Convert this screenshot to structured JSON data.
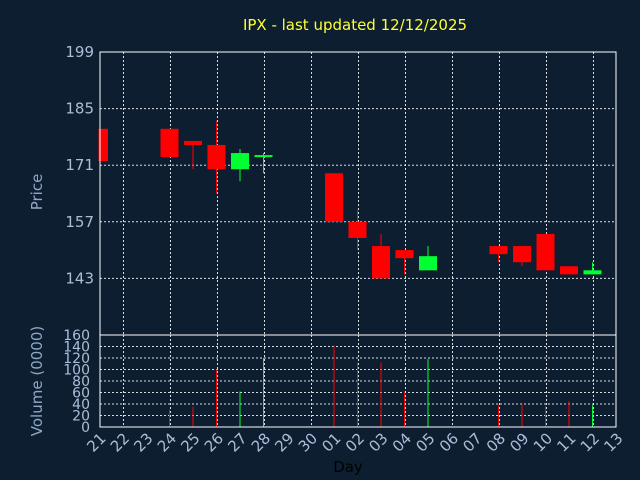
{
  "chart_data": {
    "type": "candlestick",
    "title": "IPX - last updated 12/12/2025",
    "xlabel": "Day",
    "price_panel": {
      "ylabel": "Price",
      "ylim": [
        129,
        199
      ],
      "yticks": [
        199,
        185,
        171,
        157,
        143
      ]
    },
    "volume_panel": {
      "ylabel": "Volume (0000)",
      "ylim": [
        0,
        160
      ],
      "yticks": [
        160,
        140,
        120,
        100,
        80,
        60,
        40,
        20,
        0
      ]
    },
    "x_labels": [
      "21",
      "22",
      "23",
      "24",
      "25",
      "26",
      "27",
      "28",
      "29",
      "30",
      "01",
      "02",
      "03",
      "04",
      "05",
      "06",
      "07",
      "08",
      "09",
      "10",
      "11",
      "12",
      "13"
    ],
    "up_color": "#00ff33",
    "down_color": "#ff0000",
    "candles": [
      {
        "day": "21",
        "open": 180,
        "high": 180,
        "low": 172,
        "close": 172,
        "volume": 0
      },
      {
        "day": "24",
        "open": 180,
        "high": 180,
        "low": 173,
        "close": 173,
        "volume": 30
      },
      {
        "day": "25",
        "open": 177,
        "high": 177,
        "low": 170,
        "close": 176,
        "volume": 35
      },
      {
        "day": "26",
        "open": 176,
        "high": 182,
        "low": 164,
        "close": 170,
        "volume": 100
      },
      {
        "day": "27",
        "open": 170,
        "high": 175,
        "low": 167,
        "close": 174,
        "volume": 62
      },
      {
        "day": "28",
        "open": 173,
        "high": 174,
        "low": 169,
        "close": 173.5,
        "volume": 120
      },
      {
        "day": "01",
        "open": 169,
        "high": 169,
        "low": 157,
        "close": 157,
        "volume": 142
      },
      {
        "day": "02",
        "open": 157,
        "high": 160,
        "low": 150,
        "close": 153,
        "volume": 112
      },
      {
        "day": "03",
        "open": 151,
        "high": 154,
        "low": 143,
        "close": 143,
        "volume": 112
      },
      {
        "day": "04",
        "open": 150,
        "high": 150,
        "low": 144,
        "close": 148,
        "volume": 62
      },
      {
        "day": "05",
        "open": 145,
        "high": 151,
        "low": 145,
        "close": 148.5,
        "volume": 118
      },
      {
        "day": "08",
        "open": 151,
        "high": 151,
        "low": 147,
        "close": 149,
        "volume": 38
      },
      {
        "day": "09",
        "open": 151,
        "high": 151,
        "low": 146,
        "close": 147,
        "volume": 40
      },
      {
        "day": "10",
        "open": 154,
        "high": 154,
        "low": 145,
        "close": 145,
        "volume": 36
      },
      {
        "day": "11",
        "open": 146,
        "high": 146,
        "low": 144,
        "close": 144,
        "volume": 45
      },
      {
        "day": "12",
        "open": 144,
        "high": 147,
        "low": 144,
        "close": 145,
        "volume": 38
      }
    ]
  }
}
